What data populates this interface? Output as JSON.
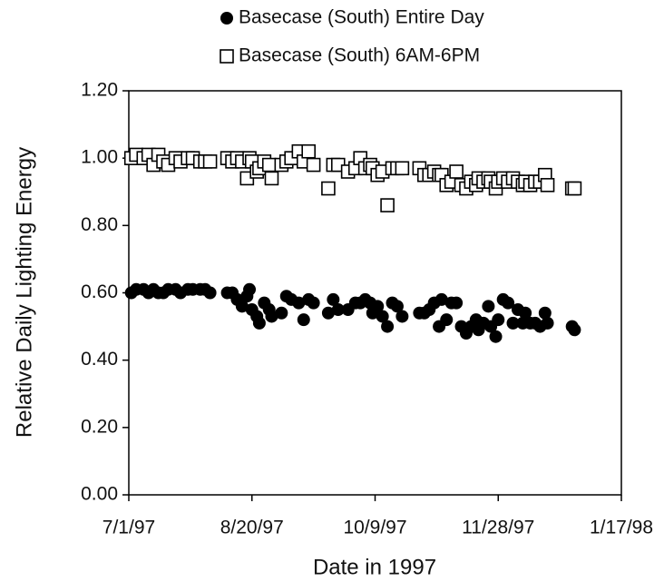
{
  "chart_data": {
    "type": "scatter",
    "x_label": "Date in 1997",
    "y_label": "Relative Daily Lighting Energy",
    "legend": "top",
    "x": [
      "7/2/97",
      "7/4/97",
      "7/7/97",
      "7/9/97",
      "7/11/97",
      "7/13/97",
      "7/15/97",
      "7/17/97",
      "7/20/97",
      "7/22/97",
      "7/25/97",
      "7/27/97",
      "7/30/97",
      "8/1/97",
      "8/3/97",
      "8/10/97",
      "8/12/97",
      "8/14/97",
      "8/16/97",
      "8/18/97",
      "8/19/97",
      "8/20/97",
      "8/22/97",
      "8/23/97",
      "8/25/97",
      "8/27/97",
      "8/28/97",
      "9/1/97",
      "9/3/97",
      "9/5/97",
      "9/8/97",
      "9/10/97",
      "9/12/97",
      "9/14/97",
      "9/20/97",
      "9/22/97",
      "9/24/97",
      "9/28/97",
      "10/1/97",
      "10/3/97",
      "10/5/97",
      "10/7/97",
      "10/8/97",
      "10/10/97",
      "10/12/97",
      "10/14/97",
      "10/16/97",
      "10/18/97",
      "10/20/97",
      "10/27/97",
      "10/29/97",
      "10/31/97",
      "11/2/97",
      "11/4/97",
      "11/5/97",
      "11/7/97",
      "11/9/97",
      "11/11/97",
      "11/13/97",
      "11/15/97",
      "11/17/97",
      "11/19/97",
      "11/20/97",
      "11/22/97",
      "11/24/97",
      "11/25/97",
      "11/27/97",
      "11/28/97",
      "11/30/97",
      "12/2/97",
      "12/4/97",
      "12/6/97",
      "12/8/97",
      "12/9/97",
      "12/11/97",
      "12/13/97",
      "12/15/97",
      "12/17/97",
      "12/18/97",
      "12/28/97",
      "12/29/97"
    ],
    "series": [
      {
        "name": "Basecase (South) Entire Day",
        "marker": "circle",
        "color": "#000000",
        "values": [
          0.6,
          0.61,
          0.61,
          0.6,
          0.61,
          0.6,
          0.6,
          0.61,
          0.61,
          0.6,
          0.61,
          0.61,
          0.61,
          0.61,
          0.6,
          0.6,
          0.6,
          0.58,
          0.56,
          0.59,
          0.61,
          0.55,
          0.53,
          0.51,
          0.57,
          0.55,
          0.53,
          0.54,
          0.59,
          0.58,
          0.57,
          0.52,
          0.58,
          0.57,
          0.54,
          0.58,
          0.55,
          0.55,
          0.57,
          0.57,
          0.58,
          0.57,
          0.54,
          0.56,
          0.53,
          0.5,
          0.57,
          0.56,
          0.53,
          0.54,
          0.54,
          0.55,
          0.57,
          0.5,
          0.58,
          0.52,
          0.57,
          0.57,
          0.5,
          0.48,
          0.5,
          0.52,
          0.49,
          0.51,
          0.56,
          0.5,
          0.47,
          0.52,
          0.58,
          0.57,
          0.51,
          0.55,
          0.51,
          0.54,
          0.51,
          0.51,
          0.5,
          0.54,
          0.51,
          0.5,
          0.49
        ]
      },
      {
        "name": "Basecase (South) 6AM-6PM",
        "marker": "square",
        "color": "#000000",
        "values": [
          1.0,
          1.01,
          1.0,
          1.01,
          0.98,
          1.01,
          0.99,
          0.98,
          1.0,
          0.99,
          1.0,
          1.0,
          0.99,
          0.99,
          0.99,
          1.0,
          0.99,
          1.0,
          0.99,
          0.94,
          1.0,
          0.99,
          0.96,
          0.97,
          0.99,
          0.98,
          0.94,
          0.98,
          0.99,
          1.0,
          1.02,
          0.99,
          1.02,
          0.98,
          0.91,
          0.98,
          0.98,
          0.96,
          0.97,
          1.0,
          0.97,
          0.98,
          0.97,
          0.95,
          0.96,
          0.86,
          0.97,
          0.97,
          0.97,
          0.97,
          0.95,
          0.95,
          0.96,
          0.95,
          0.95,
          0.92,
          0.93,
          0.96,
          0.92,
          0.91,
          0.93,
          0.92,
          0.94,
          0.93,
          0.94,
          0.93,
          0.91,
          0.93,
          0.94,
          0.93,
          0.94,
          0.93,
          0.92,
          0.93,
          0.92,
          0.93,
          0.93,
          0.95,
          0.92,
          0.91,
          0.91
        ]
      }
    ],
    "xlim": [
      "7/1/97",
      "1/17/98"
    ],
    "xticks": [
      "7/1/97",
      "8/20/97",
      "10/9/97",
      "11/28/97",
      "1/17/98"
    ],
    "ylim": [
      0,
      1.2
    ],
    "yticks": [
      {
        "value": 0,
        "label": "0.00"
      },
      {
        "value": 0.2,
        "label": "0.20"
      },
      {
        "value": 0.4,
        "label": "0.40"
      },
      {
        "value": 0.6,
        "label": "0.60"
      },
      {
        "value": 0.8,
        "label": "0.80"
      },
      {
        "value": 1,
        "label": "1.00"
      },
      {
        "value": 1.2,
        "label": "1.20"
      }
    ]
  }
}
